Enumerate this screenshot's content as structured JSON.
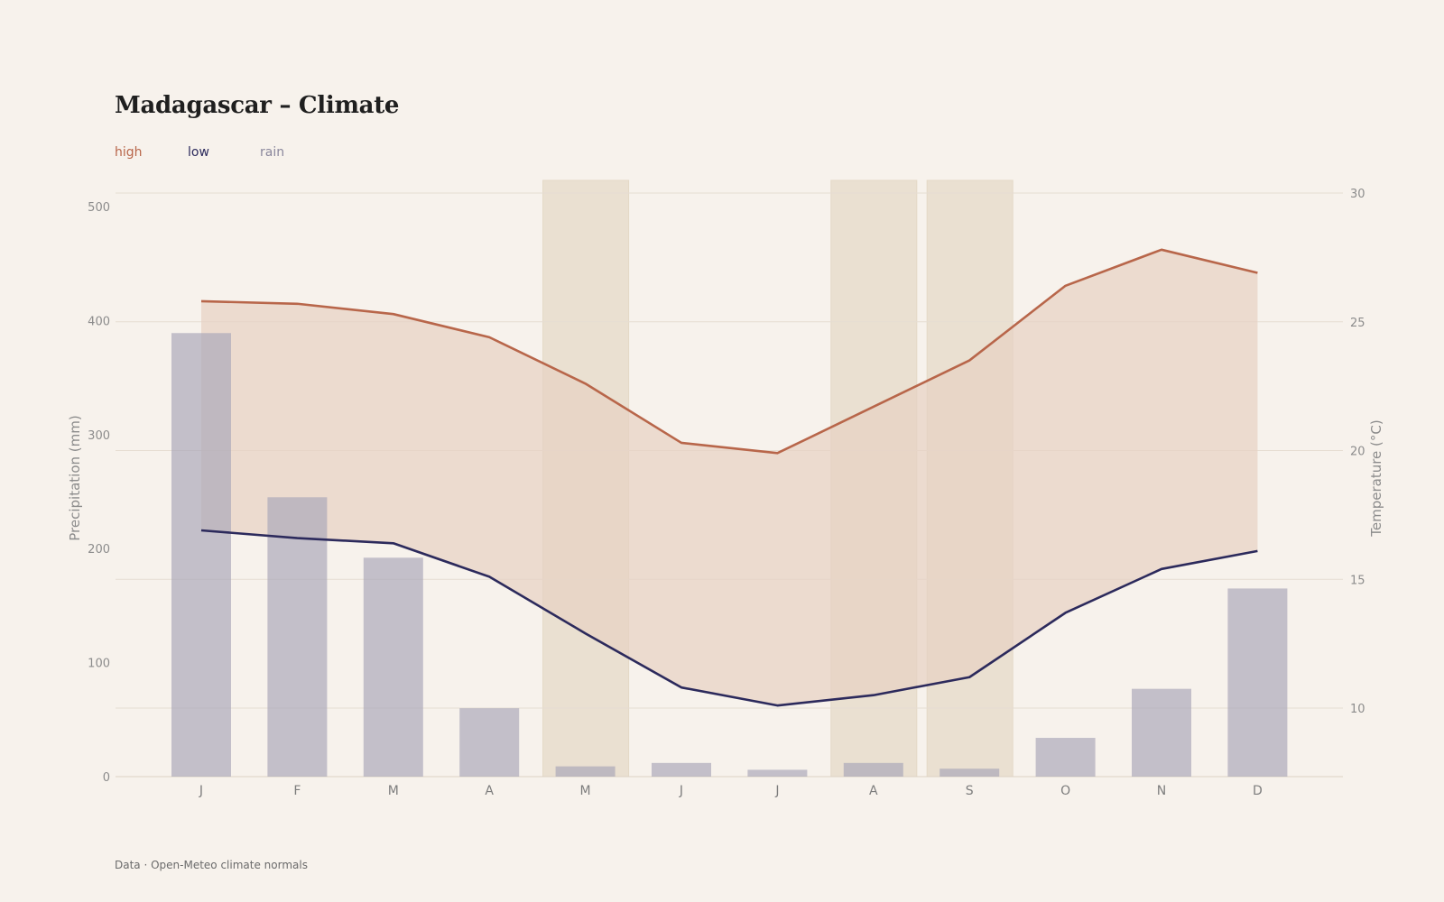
{
  "title": "Madagascar – Climate",
  "legend": {
    "high": "high",
    "low": "low",
    "rain": "rain"
  },
  "footer": "Data · Open-Meteo climate normals",
  "colors": {
    "high": "#b8664a",
    "low": "#2c2a5c",
    "rain": "#a9a7b8",
    "band": "#e7d2c3",
    "highlight": "#e9dfcf",
    "background": "#f7f2ec"
  },
  "chart_data": {
    "type": "bar+line",
    "categories": [
      "J",
      "F",
      "M",
      "A",
      "M",
      "J",
      "J",
      "A",
      "S",
      "O",
      "N",
      "D"
    ],
    "series": [
      {
        "name": "high",
        "axis": "right",
        "type": "line",
        "values": [
          25.8,
          25.7,
          25.3,
          24.4,
          22.6,
          20.3,
          19.9,
          21.7,
          23.5,
          26.4,
          27.8,
          26.9
        ]
      },
      {
        "name": "low",
        "axis": "right",
        "type": "line",
        "values": [
          16.9,
          16.6,
          16.4,
          15.1,
          12.9,
          10.8,
          10.1,
          10.5,
          11.2,
          13.7,
          15.4,
          16.1
        ]
      },
      {
        "name": "rain",
        "axis": "left",
        "type": "bar",
        "values": [
          389,
          245,
          192,
          60,
          9,
          12,
          6,
          12,
          7,
          34,
          77,
          165
        ]
      }
    ],
    "highlighted_months": [
      4,
      7,
      8
    ],
    "left_axis": {
      "label": "Precipitation (mm)",
      "ticks": [
        0,
        100,
        200,
        300,
        400,
        500
      ],
      "range": [
        0,
        515
      ]
    },
    "right_axis": {
      "label": "Temperature (°C)",
      "ticks": [
        10,
        15,
        20,
        25,
        30
      ],
      "range": [
        7.4,
        30.5
      ]
    },
    "grid": true
  }
}
